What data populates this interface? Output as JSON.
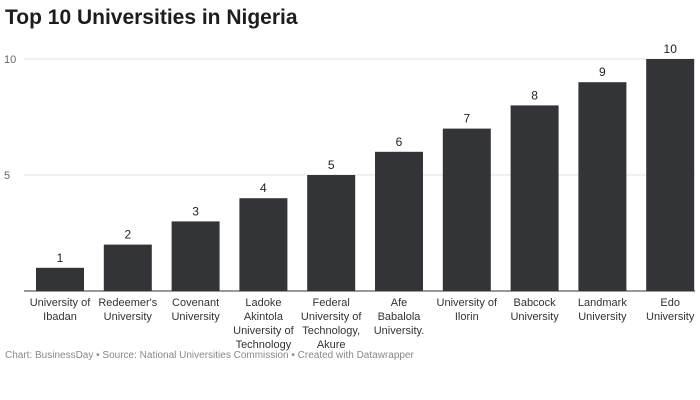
{
  "chart_data": {
    "type": "bar",
    "title": "Top 10 Universities in Nigeria",
    "categories": [
      "University of\nIbadan",
      "Redeemer's\nUniversity",
      "Covenant\nUniversity",
      "Ladoke\nAkintola\nUniversity of\nTechnology",
      "Federal\nUniversity of\nTechnology,\nAkure",
      "Afe\nBabalola\nUniversity.",
      "University of\nIlorin",
      "Babcock\nUniversity",
      "Landmark\nUniversity",
      "Edo\nUniversity"
    ],
    "values": [
      1,
      2,
      3,
      4,
      5,
      6,
      7,
      8,
      9,
      10
    ],
    "ylim": [
      0,
      10
    ],
    "yticks": [
      5,
      10
    ],
    "grid": true,
    "bar_color": "#333438",
    "xlabel": "",
    "ylabel": ""
  },
  "footer": "Chart: BusinessDay • Source: National Universities Commission • Created with Datawrapper"
}
